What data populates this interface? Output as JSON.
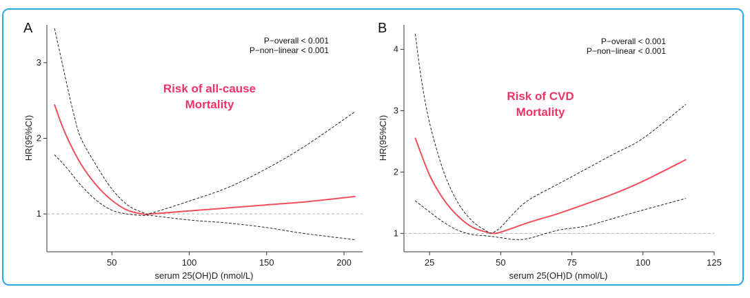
{
  "colors": {
    "frame": "#29abe2",
    "estimate": "#f04e5a",
    "ci": "#222222",
    "reference": "#b3b3b3",
    "risk_label": "#ee3366"
  },
  "chart_data": [
    {
      "type": "line",
      "panel": "A",
      "stats": [
        "P−overall < 0.001",
        "P−non−linear < 0.001"
      ],
      "annotation": [
        "Risk of all-cause",
        "Mortality"
      ],
      "xlabel": "serum 25(OH)D (nmol/L)",
      "ylabel": "HR(95%CI)",
      "xlim": [
        8,
        212
      ],
      "ylim": [
        0.5,
        3.5
      ],
      "xticks": [
        50,
        100,
        150,
        200
      ],
      "yticks": [
        1,
        2,
        3
      ],
      "reference_hr": 1,
      "series": [
        {
          "name": "HR",
          "x": [
            13,
            20,
            30,
            40,
            50,
            60,
            70,
            75,
            100,
            125,
            150,
            175,
            207
          ],
          "y": [
            2.44,
            2.06,
            1.66,
            1.38,
            1.18,
            1.05,
            1.0,
            1.0,
            1.04,
            1.08,
            1.12,
            1.16,
            1.23
          ]
        },
        {
          "name": "Upper 95% CI",
          "x": [
            13,
            20,
            25,
            30,
            40,
            50,
            60,
            70,
            75,
            100,
            125,
            150,
            175,
            207
          ],
          "y": [
            3.45,
            2.8,
            2.35,
            2.0,
            1.64,
            1.33,
            1.12,
            1.02,
            1.01,
            1.17,
            1.35,
            1.6,
            1.9,
            2.35
          ]
        },
        {
          "name": "Lower 95% CI",
          "x": [
            13,
            20,
            30,
            40,
            50,
            60,
            70,
            75,
            100,
            125,
            150,
            175,
            207
          ],
          "y": [
            1.78,
            1.63,
            1.38,
            1.18,
            1.05,
            1.0,
            0.98,
            0.98,
            0.92,
            0.88,
            0.82,
            0.74,
            0.66
          ]
        }
      ]
    },
    {
      "type": "line",
      "panel": "B",
      "stats": [
        "P−overall < 0.001",
        "P−non−linear < 0.001"
      ],
      "annotation": [
        "Risk of CVD",
        "Mortality"
      ],
      "xlabel": "serum 25(OH)D (nmol/L)",
      "ylabel": "HR(95%CI)",
      "xlim": [
        16,
        125
      ],
      "ylim": [
        0.7,
        4.4
      ],
      "xticks": [
        25,
        50,
        75,
        100,
        125
      ],
      "yticks": [
        1,
        2,
        3,
        4
      ],
      "reference_hr": 1,
      "series": [
        {
          "name": "HR",
          "x": [
            20,
            25,
            30,
            35,
            40,
            45,
            47,
            50,
            60,
            70,
            80,
            90,
            100,
            115
          ],
          "y": [
            2.55,
            1.95,
            1.55,
            1.28,
            1.1,
            1.02,
            1.0,
            1.02,
            1.18,
            1.32,
            1.48,
            1.65,
            1.85,
            2.2
          ]
        },
        {
          "name": "Upper 95% CI",
          "x": [
            20,
            22,
            25,
            30,
            35,
            40,
            45,
            47,
            50,
            55,
            60,
            70,
            80,
            90,
            100,
            115
          ],
          "y": [
            4.25,
            3.55,
            2.8,
            2.0,
            1.5,
            1.2,
            1.04,
            1.01,
            1.1,
            1.35,
            1.55,
            1.8,
            2.05,
            2.3,
            2.55,
            3.1
          ]
        },
        {
          "name": "Lower 95% CI",
          "x": [
            20,
            25,
            30,
            35,
            40,
            45,
            50,
            55,
            60,
            70,
            80,
            90,
            100,
            115
          ],
          "y": [
            1.53,
            1.35,
            1.18,
            1.05,
            0.98,
            0.96,
            0.93,
            0.9,
            0.92,
            1.05,
            1.12,
            1.25,
            1.38,
            1.57
          ]
        }
      ]
    }
  ]
}
